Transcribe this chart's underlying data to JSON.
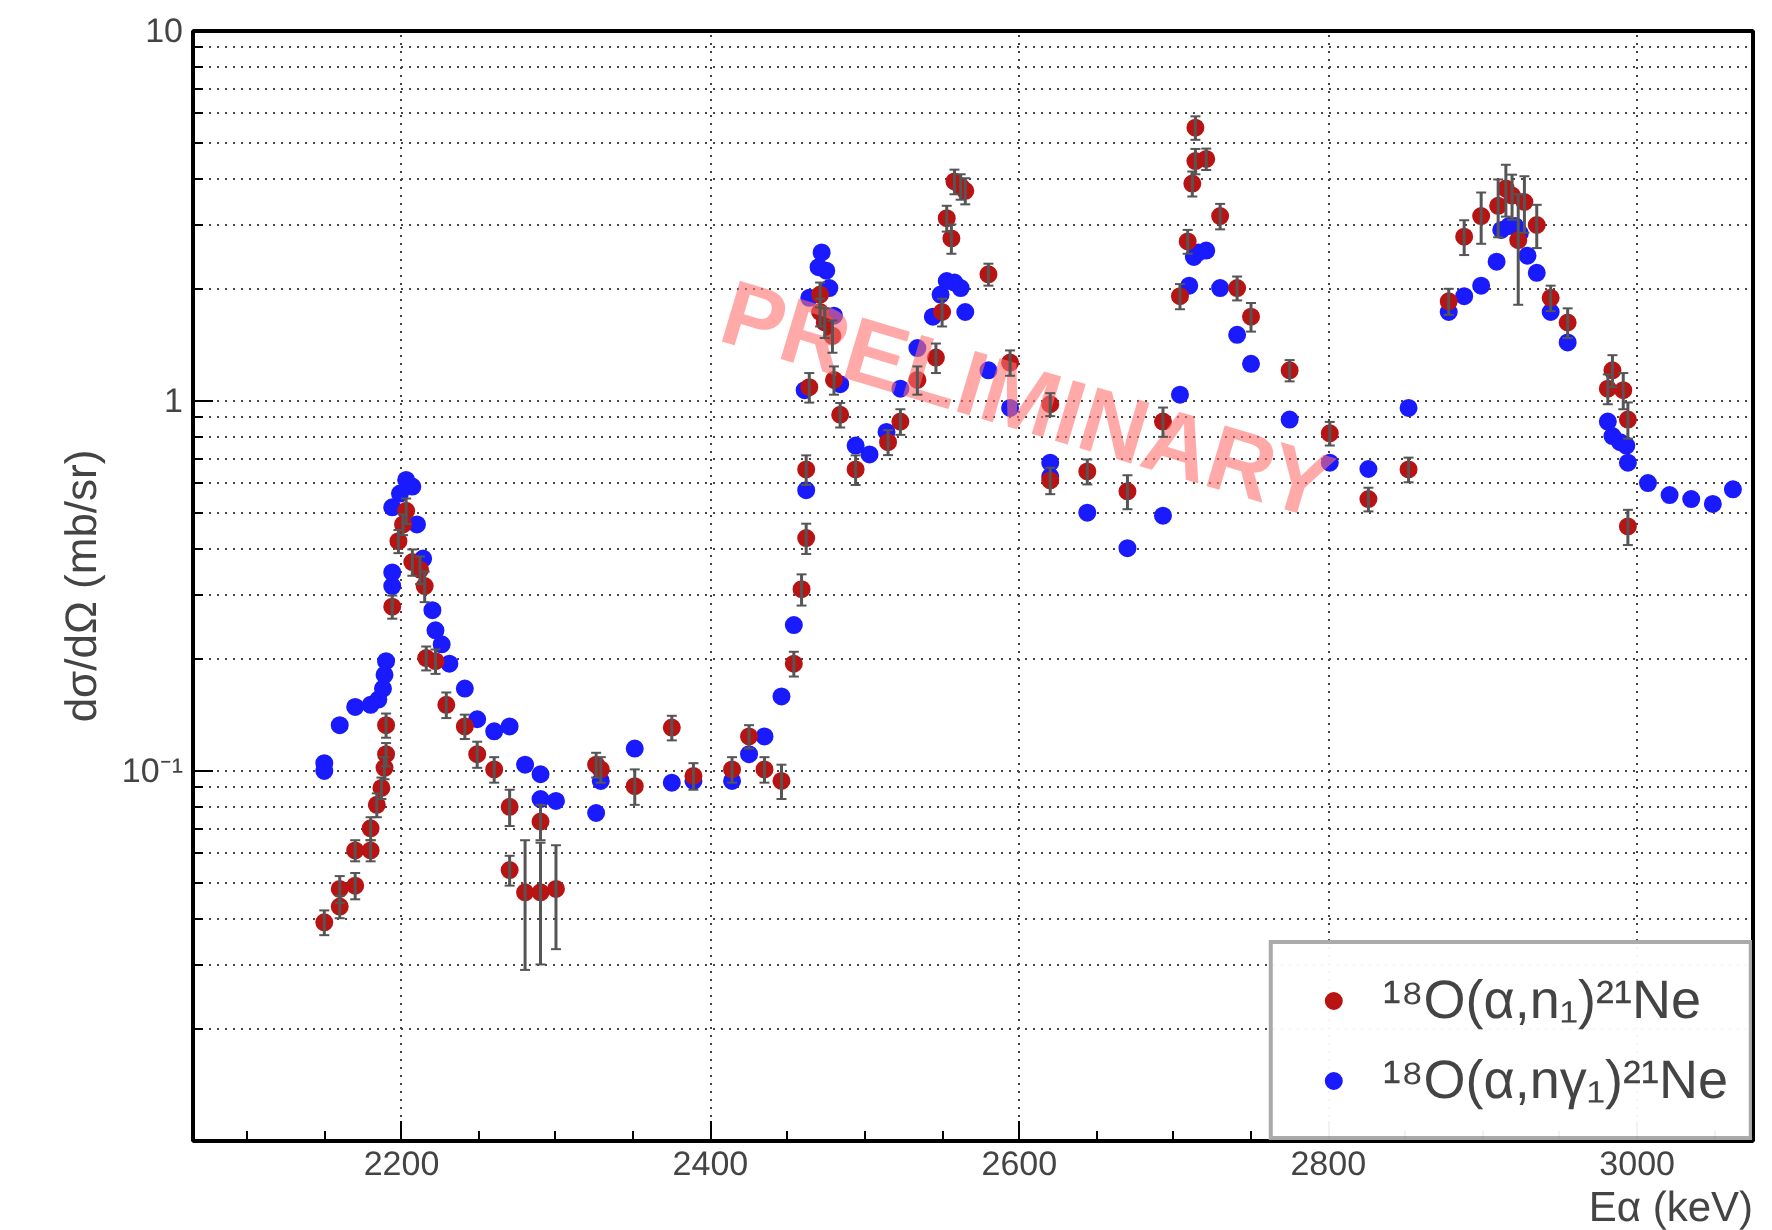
{
  "chart_data": {
    "type": "scatter",
    "xlabel": "Eα (keV)",
    "ylabel": "dσ/dΩ (mb/sr)",
    "xlim": [
      2065,
      3075
    ],
    "ylim": [
      0.01,
      10
    ],
    "log": "y",
    "xticks": [
      2200,
      2400,
      2600,
      2800,
      3000
    ],
    "yticks": [
      {
        "value": 0.1,
        "label": "10⁻¹"
      },
      1,
      10
    ],
    "grid": true,
    "legend": "bottom right",
    "marker": "circle",
    "annotations": [
      "PRELIMINARY"
    ],
    "series": [
      {
        "name": "¹⁸O(α,n₁)²¹Ne",
        "color": "#b81414",
        "x": [
          2150,
          2160,
          2160,
          2170,
          2170,
          2180,
          2180,
          2184,
          2187,
          2189,
          2190,
          2190,
          2194,
          2198,
          2201,
          2203,
          2207,
          2212,
          2215,
          2216,
          2222,
          2229,
          2241,
          2249,
          2260,
          2270,
          2270,
          2280,
          2290,
          2290,
          2300,
          2326,
          2329,
          2351,
          2375,
          2389,
          2414,
          2425,
          2435,
          2446,
          2454,
          2459,
          2462,
          2462,
          2464,
          2471,
          2471,
          2474,
          2479,
          2480,
          2484,
          2494,
          2515,
          2523,
          2534,
          2546,
          2550,
          2553,
          2556,
          2558,
          2562,
          2565,
          2580,
          2594,
          2620,
          2620,
          2644,
          2670,
          2693,
          2704,
          2709,
          2712,
          2714,
          2714,
          2721,
          2730,
          2741,
          2750,
          2775,
          2801,
          2826,
          2852,
          2878,
          2888,
          2899,
          2910,
          2915,
          2919,
          2923,
          2927,
          2935,
          2944,
          2955,
          2981,
          2984,
          2991,
          2994,
          2994
        ],
        "values": [
          0.039,
          0.043,
          0.048,
          0.049,
          0.061,
          0.061,
          0.07,
          0.081,
          0.09,
          0.102,
          0.111,
          0.133,
          0.278,
          0.418,
          0.464,
          0.505,
          0.367,
          0.35,
          0.316,
          0.202,
          0.198,
          0.151,
          0.132,
          0.111,
          0.101,
          0.08,
          0.054,
          0.047,
          0.047,
          0.073,
          0.048,
          0.104,
          0.101,
          0.091,
          0.131,
          0.097,
          0.101,
          0.124,
          0.101,
          0.094,
          0.195,
          0.31,
          0.426,
          0.653,
          1.09,
          1.94,
          1.74,
          1.63,
          1.5,
          1.14,
          0.918,
          0.653,
          0.774,
          0.88,
          1.14,
          1.31,
          1.74,
          3.12,
          2.75,
          3.92,
          3.8,
          3.7,
          2.2,
          1.27,
          0.98,
          0.61,
          0.645,
          0.57,
          0.88,
          1.92,
          2.7,
          3.87,
          4.45,
          5.48,
          4.51,
          3.16,
          2.02,
          1.69,
          1.21,
          0.818,
          0.543,
          0.653,
          1.86,
          2.78,
          3.16,
          3.37,
          3.75,
          3.59,
          2.72,
          3.45,
          2.99,
          1.9,
          1.63,
          1.08,
          1.21,
          1.07,
          0.891,
          0.458
        ],
        "errors": [
          0.003,
          0.003,
          0.004,
          0.004,
          0.004,
          0.004,
          0.005,
          0.006,
          0.006,
          0.007,
          0.008,
          0.01,
          0.02,
          0.03,
          0.03,
          0.04,
          0.03,
          0.03,
          0.03,
          0.015,
          0.015,
          0.012,
          0.01,
          0.009,
          0.008,
          0.009,
          0.005,
          0.018,
          0.017,
          0.008,
          0.015,
          0.008,
          0.008,
          0.01,
          0.01,
          0.008,
          0.008,
          0.009,
          0.008,
          0.01,
          0.015,
          0.03,
          0.04,
          0.06,
          0.1,
          0.15,
          0.15,
          0.15,
          0.15,
          0.1,
          0.07,
          0.06,
          0.06,
          0.07,
          0.1,
          0.12,
          0.15,
          0.25,
          0.25,
          0.3,
          0.3,
          0.3,
          0.15,
          0.1,
          0.07,
          0.05,
          0.05,
          0.06,
          0.08,
          0.15,
          0.2,
          0.3,
          0.35,
          0.4,
          0.3,
          0.25,
          0.15,
          0.15,
          0.08,
          0.06,
          0.04,
          0.05,
          0.15,
          0.3,
          0.5,
          0.6,
          0.6,
          0.5,
          0.9,
          0.6,
          0.4,
          0.15,
          0.15,
          0.1,
          0.12,
          0.12,
          0.1,
          0.05
        ]
      },
      {
        "name": "¹⁸O(α,nγ₁)²¹Ne",
        "color": "#1a1aff",
        "x": [
          2150,
          2150,
          2160,
          2170,
          2180,
          2185,
          2188,
          2189,
          2190,
          2194,
          2194,
          2194,
          2199,
          2203,
          2207,
          2210,
          2214,
          2220,
          2222,
          2226,
          2231,
          2241,
          2249,
          2260,
          2270,
          2280,
          2290,
          2290,
          2300,
          2326,
          2329,
          2351,
          2375,
          2389,
          2414,
          2425,
          2435,
          2446,
          2454,
          2462,
          2461,
          2464,
          2470,
          2472,
          2475,
          2477,
          2480,
          2484,
          2494,
          2503,
          2514,
          2523,
          2534,
          2544,
          2549,
          2553,
          2558,
          2562,
          2565,
          2580,
          2594,
          2620,
          2620,
          2644,
          2670,
          2693,
          2704,
          2710,
          2713,
          2716,
          2721,
          2730,
          2741,
          2750,
          2775,
          2801,
          2826,
          2852,
          2878,
          2888,
          2899,
          2909,
          2912,
          2917,
          2921,
          2924,
          2929,
          2935,
          2944,
          2955,
          2981,
          2984,
          2989,
          2993,
          2994,
          3007,
          3021,
          3035,
          3049,
          3062
        ],
        "values": [
          0.105,
          0.1,
          0.133,
          0.149,
          0.151,
          0.156,
          0.167,
          0.182,
          0.198,
          0.316,
          0.344,
          0.516,
          0.562,
          0.612,
          0.587,
          0.464,
          0.375,
          0.272,
          0.24,
          0.22,
          0.195,
          0.167,
          0.138,
          0.128,
          0.132,
          0.104,
          0.098,
          0.084,
          0.083,
          0.077,
          0.094,
          0.115,
          0.093,
          0.094,
          0.094,
          0.111,
          0.124,
          0.159,
          0.248,
          0.574,
          1.07,
          1.9,
          2.3,
          2.52,
          2.25,
          2.02,
          1.7,
          1.11,
          0.758,
          0.717,
          0.825,
          1.08,
          1.39,
          1.69,
          1.94,
          2.11,
          2.09,
          2.02,
          1.74,
          1.21,
          0.958,
          0.681,
          0.625,
          0.499,
          0.4,
          0.49,
          1.04,
          2.05,
          2.45,
          2.52,
          2.55,
          2.02,
          1.51,
          1.26,
          0.891,
          0.681,
          0.655,
          0.958,
          1.74,
          1.92,
          2.05,
          2.38,
          2.9,
          2.97,
          2.97,
          2.84,
          2.47,
          2.22,
          1.74,
          1.44,
          0.88,
          0.804,
          0.774,
          0.758,
          0.681,
          0.6,
          0.557,
          0.543,
          0.527,
          0.577
        ]
      }
    ]
  }
}
